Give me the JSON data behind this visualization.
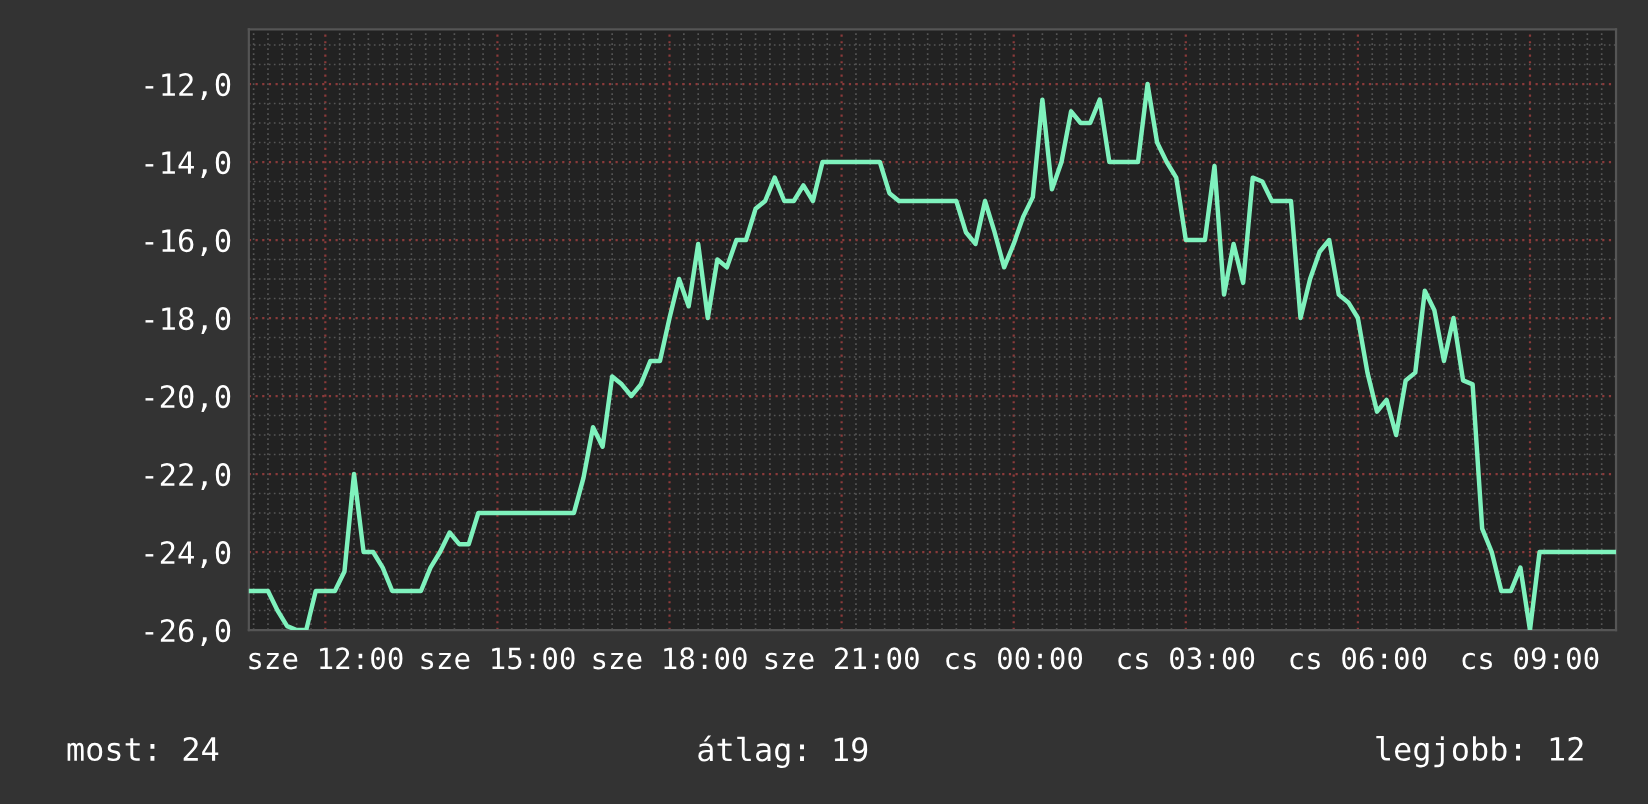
{
  "chart_data": {
    "type": "line",
    "categories": [
      null,
      null,
      null,
      null,
      null,
      null,
      null,
      null,
      "sze 12:00",
      null,
      null,
      null,
      null,
      null,
      null,
      null,
      null,
      null,
      null,
      null,
      null,
      null,
      null,
      null,
      null,
      null,
      "sze 15:00",
      null,
      null,
      null,
      null,
      null,
      null,
      null,
      null,
      null,
      null,
      null,
      null,
      null,
      null,
      null,
      null,
      null,
      "sze 18:00",
      null,
      null,
      null,
      null,
      null,
      null,
      null,
      null,
      null,
      null,
      null,
      null,
      null,
      null,
      null,
      null,
      null,
      "sze 21:00",
      null,
      null,
      null,
      null,
      null,
      null,
      null,
      null,
      null,
      null,
      null,
      null,
      null,
      null,
      null,
      null,
      null,
      "cs 00:00",
      null,
      null,
      null,
      null,
      null,
      null,
      null,
      null,
      null,
      null,
      null,
      null,
      null,
      null,
      null,
      null,
      null,
      "cs 03:00",
      null,
      null,
      null,
      null,
      null,
      null,
      null,
      null,
      null,
      null,
      null,
      null,
      null,
      null,
      null,
      null,
      null,
      "cs 06:00",
      null,
      null,
      null,
      null,
      null,
      null,
      null,
      null,
      null,
      null,
      null,
      null,
      null,
      null,
      null,
      null,
      null,
      "cs 09:00",
      null,
      null,
      null,
      null,
      null,
      null,
      null,
      null,
      null
    ],
    "series": [
      {
        "color": "#7ff2bd",
        "values": [
          -25,
          -25,
          -25,
          -25.5,
          -25.9,
          -26,
          -26,
          -25,
          -25,
          -25,
          -24.5,
          -22,
          -24,
          -24,
          -24.4,
          -25,
          -25,
          -25,
          -25,
          -24.4,
          -24,
          -23.5,
          -23.8,
          -23.8,
          -23,
          -23,
          -23,
          -23,
          -23,
          -23,
          -23,
          -23,
          -23,
          -23,
          -23,
          -22.1,
          -20.8,
          -21.3,
          -19.5,
          -19.7,
          -20,
          -19.7,
          -19.1,
          -19.1,
          -18,
          -17,
          -17.7,
          -16.1,
          -18,
          -16.5,
          -16.7,
          -16,
          -16,
          -15.2,
          -15,
          -14.4,
          -15,
          -15,
          -14.6,
          -15,
          -14,
          -14,
          -14,
          -14,
          -14,
          -14,
          -14,
          -14.8,
          -15,
          -15,
          -15,
          -15,
          -15,
          -15,
          -15,
          -15.8,
          -16.1,
          -15,
          -15.8,
          -16.7,
          -16.1,
          -15.4,
          -14.9,
          -12.4,
          -14.7,
          -14,
          -12.7,
          -13,
          -13,
          -12.4,
          -14,
          -14,
          -14,
          -14,
          -12,
          -13.5,
          -14,
          -14.4,
          -16,
          -16,
          -16,
          -14.1,
          -17.4,
          -16.1,
          -17.1,
          -14.4,
          -14.5,
          -15,
          -15,
          -15,
          -18,
          -17,
          -16.3,
          -16,
          -17.4,
          -17.6,
          -18,
          -19.4,
          -20.4,
          -20.1,
          -21,
          -19.6,
          -19.4,
          -17.3,
          -17.8,
          -19.1,
          -18,
          -19.6,
          -19.7,
          -23.4,
          -24,
          -25,
          -25,
          -24.4,
          -26,
          -24,
          -24,
          -24,
          -24,
          -24,
          -24,
          -24,
          -24,
          -24
        ]
      }
    ],
    "ylim": [
      -26,
      -10.6
    ],
    "yticks": [
      {
        "value": -26,
        "label": "-26,0"
      },
      {
        "value": -24,
        "label": "-24,0"
      },
      {
        "value": -22,
        "label": "-22,0"
      },
      {
        "value": -20,
        "label": "-20,0"
      },
      {
        "value": -18,
        "label": "-18,0"
      },
      {
        "value": -16,
        "label": "-16,0"
      },
      {
        "value": -14,
        "label": "-14,0"
      },
      {
        "value": -12,
        "label": "-12,0"
      }
    ],
    "grid": true,
    "marker": "none",
    "line_style": "solid",
    "annotations": [
      "most: 24",
      "átlag: 19",
      "legjobb: 12"
    ]
  }
}
